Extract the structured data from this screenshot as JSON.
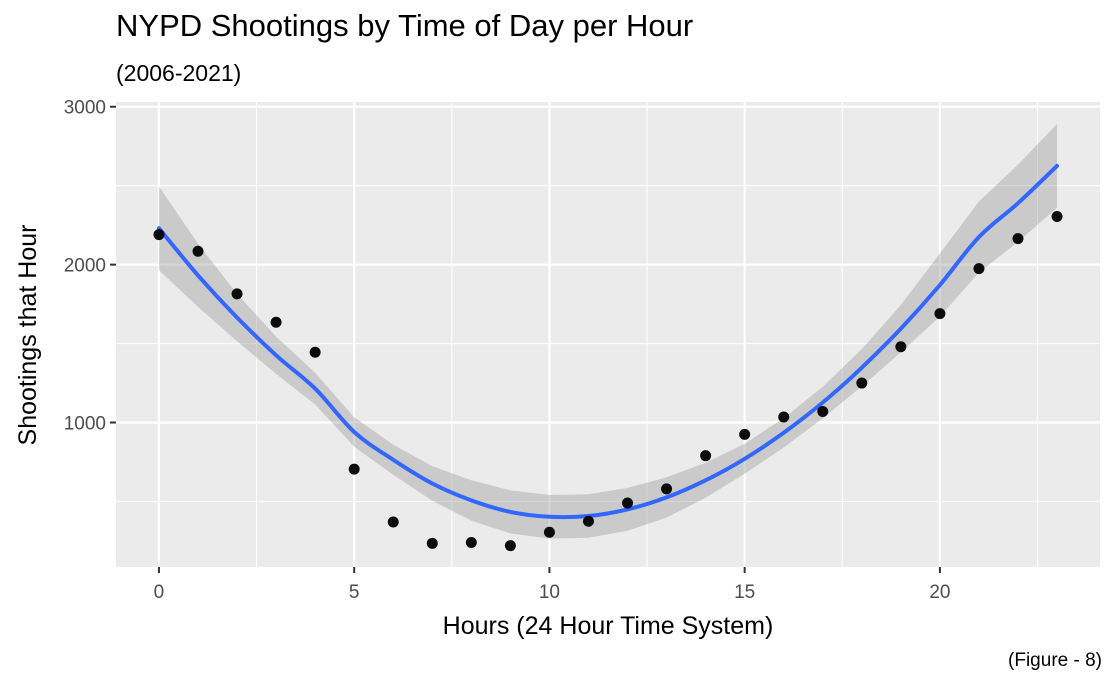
{
  "chart_data": {
    "type": "scatter",
    "title": "NYPD Shootings by Time of Day per Hour",
    "subtitle": "(2006-2021)",
    "caption": "(Figure - 8)",
    "xlabel": "Hours (24 Hour Time System)",
    "ylabel": "Shootings that Hour",
    "xlim": [
      -1.1,
      24.1
    ],
    "ylim": [
      85,
      3030
    ],
    "x_ticks": [
      0,
      5,
      10,
      15,
      20
    ],
    "x_tick_labels": [
      "0",
      "5",
      "10",
      "15",
      "20"
    ],
    "y_ticks": [
      1000,
      2000,
      3000
    ],
    "y_tick_labels": [
      "1000",
      "2000",
      "3000"
    ],
    "x_minor_ticks": [
      2.5,
      7.5,
      12.5,
      17.5,
      22.5
    ],
    "y_minor_ticks": [
      500,
      1500,
      2500
    ],
    "grid": true,
    "points": {
      "color": "#000000",
      "x": [
        0,
        1,
        2,
        3,
        4,
        5,
        6,
        7,
        8,
        9,
        10,
        11,
        12,
        13,
        14,
        15,
        16,
        17,
        18,
        19,
        20,
        21,
        22,
        23
      ],
      "y": [
        2190,
        2085,
        1815,
        1635,
        1445,
        705,
        370,
        235,
        240,
        220,
        305,
        375,
        490,
        580,
        790,
        925,
        1035,
        1070,
        1250,
        1480,
        1690,
        1975,
        2165,
        2305
      ]
    },
    "smooth": {
      "method": "quadratic fit",
      "color": "#3366FF",
      "band_color": "#999999",
      "x": [
        0,
        1,
        2,
        3,
        4,
        5,
        6,
        7,
        8,
        9,
        10,
        11,
        12,
        13,
        14,
        15,
        16,
        17,
        18,
        19,
        20,
        21,
        22,
        23
      ],
      "y": [
        2230,
        1932,
        1665,
        1426,
        1215,
        940,
        764,
        614,
        507,
        434,
        403,
        408,
        450,
        526,
        634,
        770,
        935,
        1127,
        1347,
        1595,
        1871,
        2175,
        2389,
        2625
      ],
      "ci_half_width": [
        265,
        200,
        150,
        118,
        100,
        93,
        95,
        110,
        128,
        136,
        138,
        138,
        136,
        128,
        110,
        95,
        93,
        100,
        118,
        150,
        200,
        225,
        245,
        265
      ]
    }
  }
}
